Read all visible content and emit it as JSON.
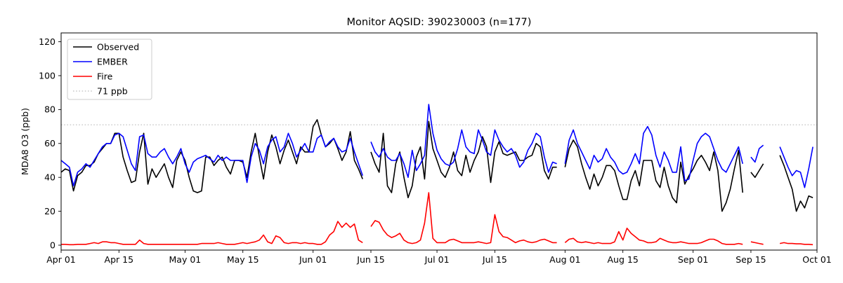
{
  "window": {
    "title": "Monitor AQSID: 390230003 (n=177)"
  },
  "chart_data": {
    "type": "line",
    "title": "Monitor AQSID: 390230003 (n=177)",
    "monitor_aqsid": "390230003",
    "n": 177,
    "xlabel": "",
    "ylabel": "MDA8 O3 (ppb)",
    "ylim": [
      -3,
      125
    ],
    "yticks": [
      0,
      20,
      40,
      60,
      80,
      100,
      120
    ],
    "x_unit": "day",
    "n_days": 183,
    "x_range_labels": [
      "Apr 01",
      "Oct 01"
    ],
    "x_tick_days": [
      0,
      14,
      30,
      44,
      61,
      75,
      91,
      105,
      122,
      136,
      153,
      167,
      183
    ],
    "x_tick_labels": [
      "Apr 01",
      "Apr 15",
      "May 01",
      "May 15",
      "Jun 01",
      "Jun 15",
      "Jul 01",
      "Jul 15",
      "Aug 01",
      "Aug 15",
      "Sep 01",
      "Sep 15",
      "Oct 01"
    ],
    "grid": false,
    "legend_position": "upper left",
    "threshold": {
      "value": 71,
      "label": "71 ppb",
      "color": "#c9c9c9",
      "style": "dotted"
    },
    "missing_days": [
      "Jun 14",
      "Jul 31",
      "Sep 14",
      "Sep 19",
      "Sep 20",
      "Sep 21"
    ],
    "series": [
      {
        "name": "Observed",
        "color": "#000000",
        "values": [
          43,
          45,
          44,
          32,
          41,
          43,
          47,
          47,
          49,
          54,
          57,
          60,
          60,
          66,
          66,
          52,
          44,
          37,
          38,
          55,
          66,
          36,
          45,
          40,
          44,
          48,
          40,
          34,
          50,
          55,
          50,
          40,
          32,
          31,
          32,
          52,
          52,
          47,
          50,
          52,
          46,
          42,
          50,
          50,
          49,
          40,
          55,
          66,
          52,
          39,
          55,
          65,
          58,
          48,
          56,
          62,
          55,
          48,
          58,
          55,
          55,
          70,
          74,
          65,
          58,
          60,
          63,
          57,
          50,
          55,
          67,
          50,
          45,
          39,
          null,
          55,
          48,
          43,
          66,
          35,
          31,
          48,
          55,
          40,
          28,
          35,
          52,
          58,
          39,
          73,
          57,
          50,
          43,
          40,
          46,
          55,
          44,
          41,
          53,
          43,
          50,
          55,
          64,
          58,
          37,
          55,
          61,
          54,
          53,
          54,
          55,
          50,
          50,
          52,
          53,
          60,
          58,
          44,
          39,
          46,
          46,
          null,
          46,
          57,
          62,
          58,
          48,
          40,
          33,
          42,
          35,
          40,
          47,
          47,
          44,
          35,
          27,
          27,
          38,
          44,
          35,
          50,
          50,
          50,
          38,
          34,
          46,
          35,
          28,
          25,
          49,
          36,
          41,
          45,
          50,
          53,
          49,
          44,
          55,
          44,
          20,
          25,
          33,
          45,
          56,
          31,
          null,
          43,
          40,
          44,
          48,
          null,
          null,
          null,
          53,
          47,
          40,
          33,
          20,
          26,
          22,
          29,
          28
        ]
      },
      {
        "name": "EMBER",
        "color": "#0000ff",
        "values": [
          50,
          48,
          46,
          35,
          43,
          45,
          48,
          46,
          50,
          54,
          58,
          60,
          60,
          65,
          66,
          64,
          56,
          48,
          44,
          64,
          65,
          54,
          52,
          52,
          55,
          57,
          52,
          48,
          52,
          57,
          48,
          43,
          49,
          51,
          52,
          53,
          51,
          49,
          53,
          50,
          52,
          50,
          50,
          50,
          50,
          37,
          52,
          60,
          56,
          48,
          58,
          62,
          64,
          55,
          58,
          66,
          60,
          52,
          56,
          60,
          55,
          55,
          63,
          65,
          58,
          61,
          63,
          58,
          55,
          56,
          63,
          55,
          48,
          41,
          null,
          61,
          55,
          52,
          57,
          52,
          50,
          50,
          54,
          48,
          40,
          56,
          44,
          48,
          53,
          83,
          66,
          56,
          51,
          48,
          47,
          49,
          57,
          68,
          58,
          55,
          54,
          68,
          62,
          55,
          53,
          68,
          62,
          58,
          55,
          57,
          53,
          46,
          49,
          56,
          60,
          66,
          64,
          52,
          43,
          49,
          48,
          null,
          48,
          62,
          68,
          60,
          55,
          50,
          45,
          53,
          49,
          51,
          57,
          52,
          49,
          44,
          42,
          43,
          48,
          54,
          48,
          66,
          70,
          65,
          53,
          46,
          55,
          50,
          43,
          43,
          58,
          38,
          39,
          50,
          60,
          64,
          66,
          64,
          57,
          50,
          45,
          43,
          48,
          53,
          58,
          48,
          null,
          52,
          49,
          57,
          59,
          null,
          null,
          null,
          58,
          52,
          46,
          41,
          44,
          43,
          34,
          45,
          58
        ]
      },
      {
        "name": "Fire",
        "color": "#ff0000",
        "values": [
          0.5,
          0.5,
          0.3,
          0.3,
          0.5,
          0.5,
          0.5,
          1,
          1.5,
          1,
          2,
          2,
          1.5,
          1.5,
          1,
          0.5,
          0.5,
          0.5,
          0.5,
          3,
          1,
          0.5,
          0.5,
          0.5,
          0.5,
          0.5,
          0.5,
          0.5,
          0.5,
          0.5,
          0.5,
          0.5,
          0.5,
          0.5,
          1,
          1,
          1,
          1,
          1.5,
          1,
          0.5,
          0.5,
          0.5,
          1,
          1.5,
          1,
          1.5,
          2,
          3,
          6,
          2,
          1,
          5.5,
          4.5,
          1.5,
          1,
          1.5,
          1.5,
          1,
          1.5,
          1,
          1,
          0.5,
          0.5,
          2,
          6,
          8,
          14,
          10.5,
          13,
          10.5,
          12.5,
          3,
          1.5,
          null,
          11,
          14.5,
          13.5,
          9,
          6,
          4.5,
          5.5,
          7,
          3,
          1.5,
          1,
          1.5,
          3,
          13,
          31,
          4,
          1.5,
          1.5,
          1.5,
          3,
          3.5,
          2.5,
          1.5,
          1.5,
          1.5,
          1.5,
          2,
          1.5,
          1,
          1.5,
          18,
          8,
          5,
          4.5,
          3,
          1.5,
          2.5,
          3,
          2,
          1.5,
          2,
          3,
          3.5,
          2.5,
          1.5,
          1.5,
          null,
          1.5,
          3.5,
          4,
          2,
          1.5,
          2,
          1.5,
          1,
          1.5,
          1,
          1,
          1,
          2,
          8,
          3,
          10,
          7,
          5,
          3,
          2.5,
          1.5,
          1.5,
          2,
          4,
          3,
          2,
          1.5,
          1.5,
          2,
          1.5,
          1,
          1,
          1,
          1.5,
          2.5,
          3.5,
          3.5,
          2.5,
          1,
          0.5,
          0.5,
          0.5,
          1,
          0.5,
          null,
          2,
          1.5,
          1,
          0.5,
          null,
          null,
          null,
          1,
          1.5,
          1,
          1,
          0.8,
          0.8,
          0.5,
          0.5,
          0.3
        ]
      }
    ]
  }
}
